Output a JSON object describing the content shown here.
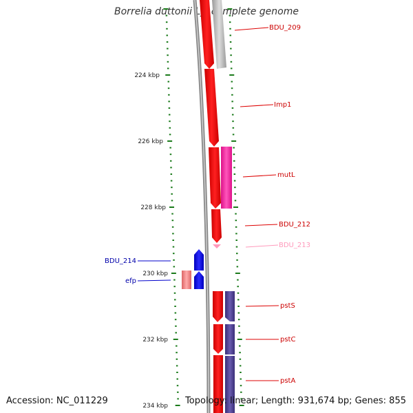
{
  "title": "Borrelia duttonii Ly, complete genome",
  "footer": {
    "accession": "Accession: NC_011229",
    "summary": "Topology: linear; Length: 931,674 bp; Genes: 855"
  },
  "colors": {
    "gene_red": "#ff0000",
    "gene_grey": "#b8b8b8",
    "gene_magenta": "#ff33aa",
    "gene_pink": "#ff99bb",
    "gene_blue": "#0000ff",
    "gene_salmon": "#ee7777",
    "gene_navy": "#4a3c8c",
    "tick": "#1a7a1a",
    "backbone": "#808080"
  },
  "axis": {
    "ticks": [
      {
        "label": "224 kbp"
      },
      {
        "label": "226 kbp"
      },
      {
        "label": "228 kbp"
      },
      {
        "label": "230 kbp"
      },
      {
        "label": "232 kbp"
      },
      {
        "label": "234 kbp"
      }
    ]
  },
  "genes": [
    {
      "name": "BDU_209",
      "color": "gene_red"
    },
    {
      "name": "Imp1",
      "color": "gene_red"
    },
    {
      "name": "mutL",
      "color": "gene_red"
    },
    {
      "name": "BDU_212",
      "color": "gene_red"
    },
    {
      "name": "BDU_213",
      "color": "gene_pink"
    },
    {
      "name": "BDU_214",
      "color": "gene_blue"
    },
    {
      "name": "efp",
      "color": "gene_blue"
    },
    {
      "name": "pstS",
      "color": "gene_red"
    },
    {
      "name": "pstC",
      "color": "gene_red"
    },
    {
      "name": "pstA",
      "color": "gene_red"
    }
  ]
}
